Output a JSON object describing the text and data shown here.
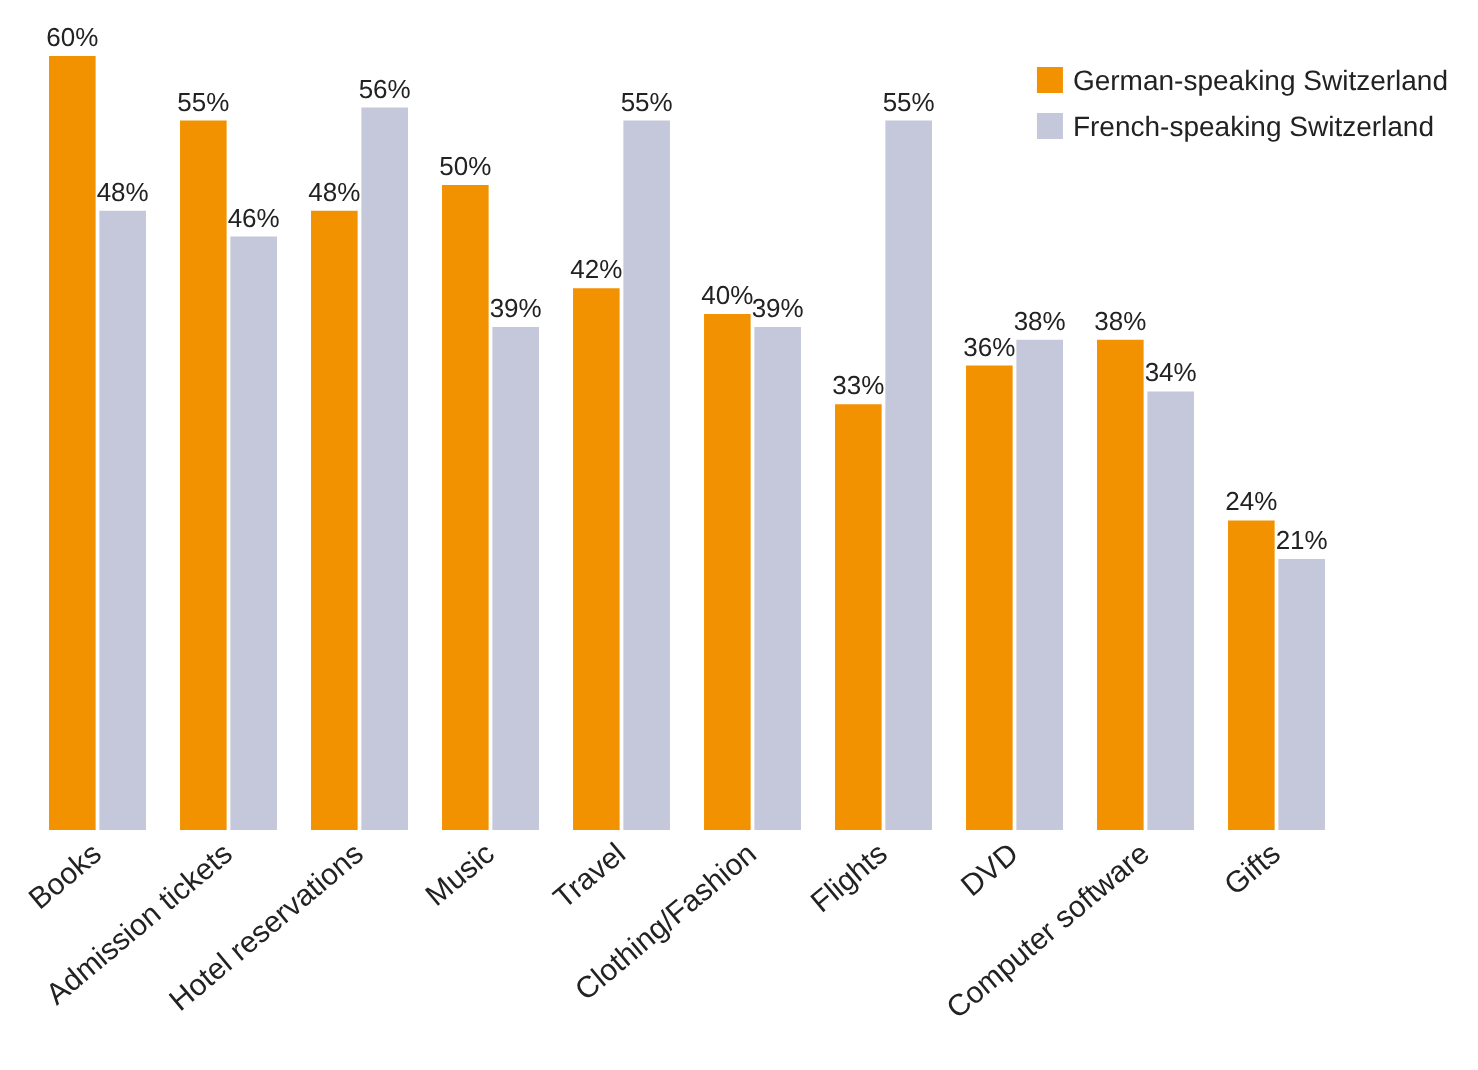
{
  "chart_data": {
    "type": "bar",
    "categories": [
      "Books",
      "Admission tickets",
      "Hotel reservations",
      "Music",
      "Travel",
      "Clothing/Fashion",
      "Flights",
      "DVD",
      "Computer software",
      "Gifts"
    ],
    "series": [
      {
        "name": "German-speaking Switzerland",
        "color": "#f39200",
        "values": [
          60,
          55,
          48,
          50,
          42,
          40,
          33,
          36,
          38,
          24
        ],
        "value_labels": [
          "60%",
          "55%",
          "48%",
          "50%",
          "42%",
          "40%",
          "33%",
          "36%",
          "38%",
          "24%"
        ]
      },
      {
        "name": "French-speaking Switzerland",
        "color": "#c5c8da",
        "values": [
          48,
          46,
          56,
          39,
          55,
          39,
          55,
          38,
          34,
          21
        ],
        "value_labels": [
          "48%",
          "46%",
          "56%",
          "39%",
          "55%",
          "39%",
          "55%",
          "38%",
          "34%",
          "21%"
        ]
      }
    ],
    "ylim": [
      0,
      60
    ],
    "legend": "top right"
  }
}
